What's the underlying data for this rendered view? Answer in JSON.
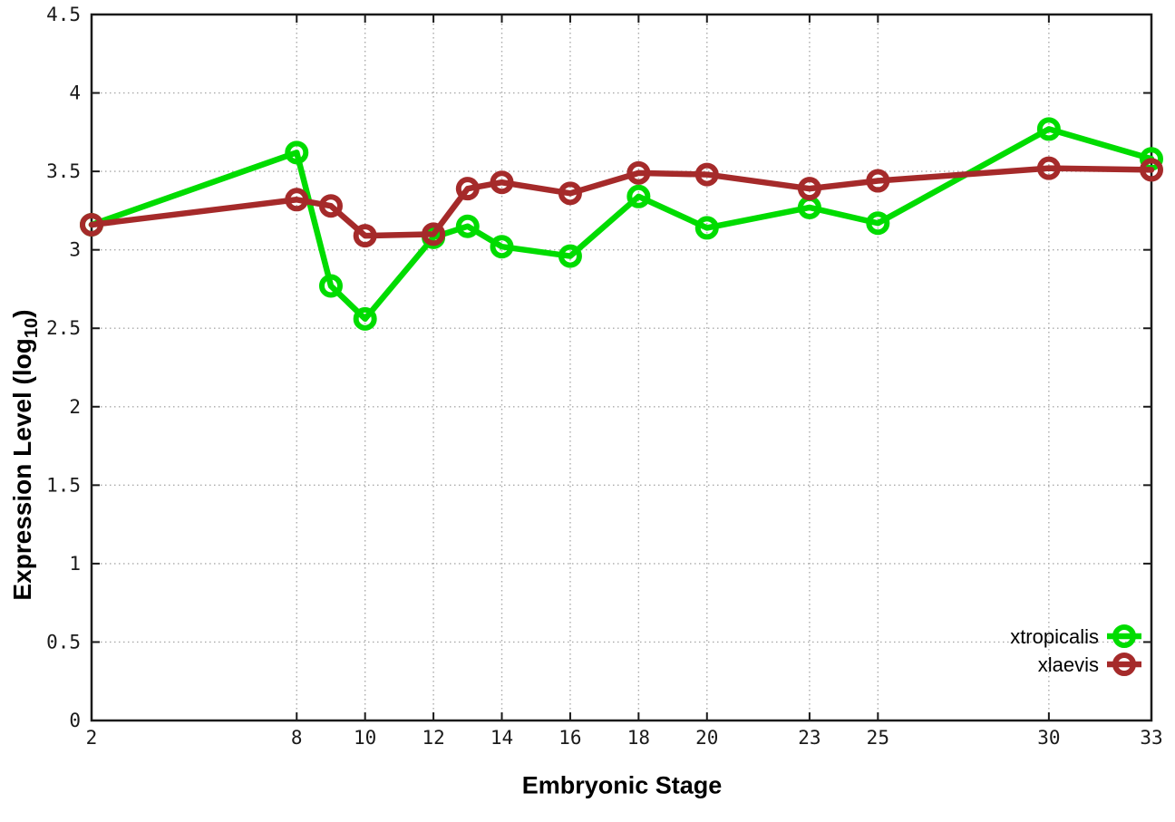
{
  "chart_data": {
    "type": "line",
    "title": "",
    "xlabel": "Embryonic Stage",
    "ylabel": {
      "prefix": "Expression Level (log",
      "sub": "10",
      "suffix": ")"
    },
    "x_ticks": [
      2,
      8,
      10,
      12,
      14,
      16,
      18,
      20,
      23,
      25,
      30,
      33
    ],
    "x_tick_labels": [
      "2",
      "8",
      "10",
      "12",
      "14",
      "16",
      "18",
      "20",
      "23",
      "25",
      "30",
      "33"
    ],
    "y_ticks": [
      0,
      0.5,
      1,
      1.5,
      2,
      2.5,
      3,
      3.5,
      4,
      4.5
    ],
    "y_tick_labels": [
      "0",
      "0.5",
      "1",
      "1.5",
      "2",
      "2.5",
      "3",
      "3.5",
      "4",
      "4.5"
    ],
    "xlim": [
      2,
      33
    ],
    "ylim": [
      0,
      4.5
    ],
    "grid": true,
    "legend_position": "bottom-right",
    "x": [
      2,
      8,
      9,
      10,
      12,
      13,
      14,
      16,
      18,
      20,
      23,
      25,
      30,
      33
    ],
    "series": [
      {
        "name": "xtropicalis",
        "color": "#00dc00",
        "values": [
          3.16,
          3.62,
          2.77,
          2.56,
          3.08,
          3.15,
          3.02,
          2.96,
          3.34,
          3.14,
          3.27,
          3.17,
          3.77,
          3.58
        ]
      },
      {
        "name": "xlaevis",
        "color": "#a52a2a",
        "values": [
          3.16,
          3.32,
          3.28,
          3.09,
          3.1,
          3.39,
          3.43,
          3.36,
          3.49,
          3.48,
          3.39,
          3.44,
          3.52,
          3.51
        ]
      }
    ],
    "axis_color": "#1a1a1a",
    "grid_color": "#aaaaaa",
    "tick_label_color": "#1a1a1a"
  }
}
